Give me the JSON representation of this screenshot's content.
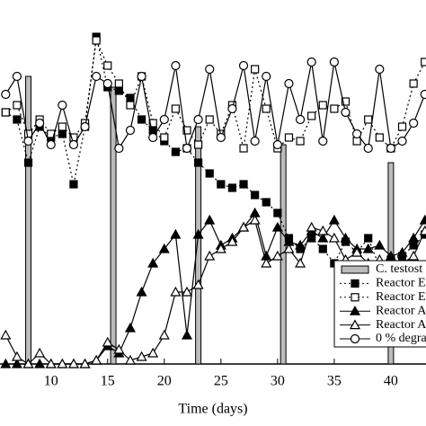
{
  "chart_data": {
    "type": "line",
    "x_label": "Time (days)",
    "x": [
      6,
      7,
      8,
      9,
      10,
      11,
      12,
      13,
      14,
      15,
      16,
      17,
      18,
      19,
      20,
      21,
      22,
      23,
      24,
      25,
      26,
      27,
      28,
      29,
      30,
      31,
      32,
      33,
      34,
      35,
      36,
      37,
      38,
      39,
      40,
      41,
      42,
      43
    ],
    "xlim": [
      5.5,
      43.1
    ],
    "xticks": [
      10,
      15,
      20,
      25,
      30,
      35,
      40
    ],
    "ylim": [
      0,
      100
    ],
    "bars": {
      "name": "C. testost",
      "x": [
        8,
        15.5,
        23,
        30.5,
        40
      ],
      "values": [
        80,
        77,
        66,
        61,
        56
      ],
      "color": "#bbbbbb"
    },
    "series": [
      {
        "name": "Reactor E",
        "marker": "filled-square",
        "line": "dotted",
        "color": "#000000",
        "values": [
          70,
          68,
          56,
          66,
          63,
          64,
          50,
          66,
          91,
          77,
          76,
          74,
          68,
          65,
          62,
          59,
          60,
          56,
          53,
          50,
          49,
          50,
          47,
          45,
          42,
          35,
          32,
          35,
          32,
          28,
          34,
          31,
          35,
          27,
          29,
          30,
          33,
          36
        ]
      },
      {
        "name": "Reactor E",
        "marker": "open-square",
        "line": "dotted",
        "color": "#000000",
        "values": [
          70,
          72,
          64,
          68,
          64,
          66,
          63,
          67,
          90,
          83,
          78,
          72,
          80,
          67,
          63,
          71,
          65,
          61,
          68,
          64,
          72,
          60,
          82,
          71,
          60,
          63,
          62,
          69,
          72,
          71,
          73,
          62,
          68,
          63,
          60,
          66,
          78,
          84
        ]
      },
      {
        "name": "Reactor A",
        "marker": "filled-triangle",
        "line": "solid",
        "color": "#000000",
        "values": [
          0,
          0,
          0,
          0,
          0,
          0,
          0,
          0,
          1,
          5,
          3,
          10,
          20,
          28,
          32,
          36,
          8,
          36,
          40,
          33,
          35,
          38,
          42,
          30,
          38,
          34,
          33,
          37,
          35,
          40,
          35,
          32,
          32,
          33,
          30,
          31,
          35,
          40
        ]
      },
      {
        "name": "Reactor A",
        "marker": "open-triangle",
        "line": "solid",
        "color": "#000000",
        "values": [
          8,
          2,
          0,
          3,
          0,
          0,
          0,
          0,
          1,
          6,
          4,
          1,
          2,
          3,
          8,
          20,
          20,
          22,
          30,
          32,
          34,
          38,
          40,
          28,
          30,
          32,
          28,
          38,
          37,
          35,
          29,
          31,
          28,
          29,
          27,
          28,
          30,
          37
        ]
      },
      {
        "name": "0 % degra",
        "marker": "open-circle",
        "line": "solid",
        "color": "#000000",
        "values": [
          75,
          80,
          62,
          67,
          61,
          72,
          61,
          66,
          80,
          78,
          60,
          65,
          80,
          63,
          68,
          83,
          60,
          68,
          82,
          63,
          71,
          83,
          62,
          80,
          61,
          78,
          68,
          84,
          62,
          84,
          70,
          64,
          60,
          82,
          60,
          62,
          67,
          75
        ]
      }
    ]
  }
}
